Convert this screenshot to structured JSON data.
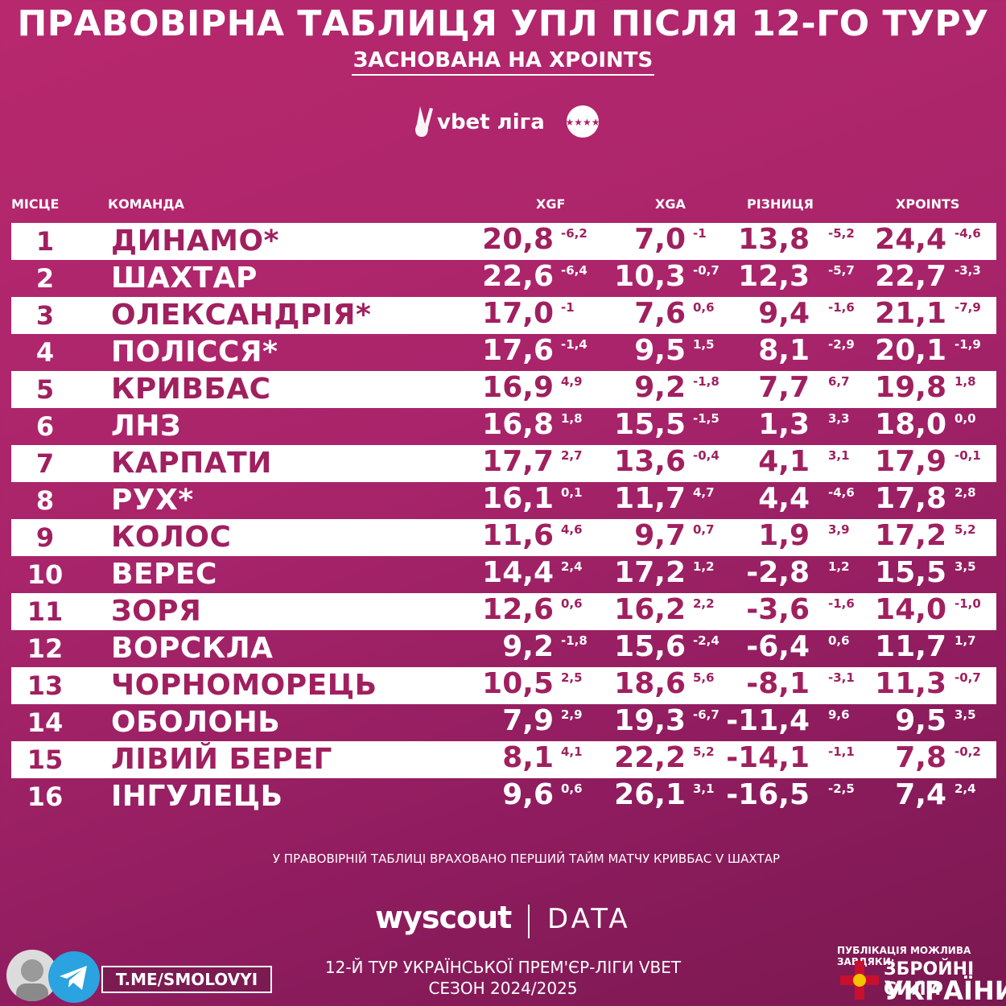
{
  "title": "ПРАВОВІРНА ТАБЛИЦЯ УПЛ ПІСЛЯ 12-ГО ТУРУ",
  "subtitle": "ЗАСНОВАНА НА XPOINTS",
  "league_logo_text": "vbet ліга",
  "headers": {
    "place": "МІСЦЕ",
    "team": "КОМАНДА",
    "xgf": "XGF",
    "xga": "XGA",
    "diff": "РІЗНИЦЯ",
    "xpoints": "XPOINTS"
  },
  "rows": [
    {
      "rank": "1",
      "team": "ДИНАМО*",
      "xgf": "20,8",
      "xgf_d": "-6,2",
      "xga": "7,0",
      "xga_d": "-1",
      "diff": "13,8",
      "diff_d": "-5,2",
      "xp": "24,4",
      "xp_d": "-4,6"
    },
    {
      "rank": "2",
      "team": "ШАХТАР",
      "xgf": "22,6",
      "xgf_d": "-6,4",
      "xga": "10,3",
      "xga_d": "-0,7",
      "diff": "12,3",
      "diff_d": "-5,7",
      "xp": "22,7",
      "xp_d": "-3,3"
    },
    {
      "rank": "3",
      "team": "ОЛЕКСАНДРІЯ*",
      "xgf": "17,0",
      "xgf_d": "-1",
      "xga": "7,6",
      "xga_d": "0,6",
      "diff": "9,4",
      "diff_d": "-1,6",
      "xp": "21,1",
      "xp_d": "-7,9"
    },
    {
      "rank": "4",
      "team": "ПОЛІССЯ*",
      "xgf": "17,6",
      "xgf_d": "-1,4",
      "xga": "9,5",
      "xga_d": "1,5",
      "diff": "8,1",
      "diff_d": "-2,9",
      "xp": "20,1",
      "xp_d": "-1,9"
    },
    {
      "rank": "5",
      "team": "КРИВБАС",
      "xgf": "16,9",
      "xgf_d": "4,9",
      "xga": "9,2",
      "xga_d": "-1,8",
      "diff": "7,7",
      "diff_d": "6,7",
      "xp": "19,8",
      "xp_d": "1,8"
    },
    {
      "rank": "6",
      "team": "ЛНЗ",
      "xgf": "16,8",
      "xgf_d": "1,8",
      "xga": "15,5",
      "xga_d": "-1,5",
      "diff": "1,3",
      "diff_d": "3,3",
      "xp": "18,0",
      "xp_d": "0,0"
    },
    {
      "rank": "7",
      "team": "КАРПАТИ",
      "xgf": "17,7",
      "xgf_d": "2,7",
      "xga": "13,6",
      "xga_d": "-0,4",
      "diff": "4,1",
      "diff_d": "3,1",
      "xp": "17,9",
      "xp_d": "-0,1"
    },
    {
      "rank": "8",
      "team": "РУХ*",
      "xgf": "16,1",
      "xgf_d": "0,1",
      "xga": "11,7",
      "xga_d": "4,7",
      "diff": "4,4",
      "diff_d": "-4,6",
      "xp": "17,8",
      "xp_d": "2,8"
    },
    {
      "rank": "9",
      "team": "КОЛОС",
      "xgf": "11,6",
      "xgf_d": "4,6",
      "xga": "9,7",
      "xga_d": "0,7",
      "diff": "1,9",
      "diff_d": "3,9",
      "xp": "17,2",
      "xp_d": "5,2"
    },
    {
      "rank": "10",
      "team": "ВЕРЕС",
      "xgf": "14,4",
      "xgf_d": "2,4",
      "xga": "17,2",
      "xga_d": "1,2",
      "diff": "-2,8",
      "diff_d": "1,2",
      "xp": "15,5",
      "xp_d": "3,5"
    },
    {
      "rank": "11",
      "team": "ЗОРЯ",
      "xgf": "12,6",
      "xgf_d": "0,6",
      "xga": "16,2",
      "xga_d": "2,2",
      "diff": "-3,6",
      "diff_d": "-1,6",
      "xp": "14,0",
      "xp_d": "-1,0"
    },
    {
      "rank": "12",
      "team": "ВОРСКЛА",
      "xgf": "9,2",
      "xgf_d": "-1,8",
      "xga": "15,6",
      "xga_d": "-2,4",
      "diff": "-6,4",
      "diff_d": "0,6",
      "xp": "11,7",
      "xp_d": "1,7"
    },
    {
      "rank": "13",
      "team": "ЧОРНОМОРЕЦЬ",
      "xgf": "10,5",
      "xgf_d": "2,5",
      "xga": "18,6",
      "xga_d": "5,6",
      "diff": "-8,1",
      "diff_d": "-3,1",
      "xp": "11,3",
      "xp_d": "-0,7"
    },
    {
      "rank": "14",
      "team": "ОБОЛОНЬ",
      "xgf": "7,9",
      "xgf_d": "2,9",
      "xga": "19,3",
      "xga_d": "-6,7",
      "diff": "-11,4",
      "diff_d": "9,6",
      "xp": "9,5",
      "xp_d": "3,5"
    },
    {
      "rank": "15",
      "team": "ЛІВИЙ БЕРЕГ",
      "xgf": "8,1",
      "xgf_d": "4,1",
      "xga": "22,2",
      "xga_d": "5,2",
      "diff": "-14,1",
      "diff_d": "-1,1",
      "xp": "7,8",
      "xp_d": "-0,2"
    },
    {
      "rank": "16",
      "team": "ІНГУЛЕЦЬ",
      "xgf": "9,6",
      "xgf_d": "0,6",
      "xga": "26,1",
      "xga_d": "3,1",
      "diff": "-16,5",
      "diff_d": "-2,5",
      "xp": "7,4",
      "xp_d": "2,4"
    }
  ],
  "note": "У ПРАВОВІРНІЙ ТАБЛИЦІ ВРАХОВАНО ПЕРШИЙ ТАЙМ МАТЧУ КРИВБАС V ШАХТАР",
  "wyscout": "wyscout",
  "wyscout_data": "DATA",
  "footer_line1": "12-Й ТУР УКРАЇНСЬКОЇ ПРЕМ'ЄР-ЛІГИ VBET",
  "footer_line2": "СЕЗОН 2024/2025",
  "telegram_link": "T.ME/SMOLOVYI",
  "zsu_header": "ПУБЛІКАЦІЯ МОЖЛИВА ЗАВДЯКИ:",
  "zsu_line1": "ЗБРОЙНІ СИЛИ",
  "zsu_line2": "УКРАЇНИ",
  "colors": {
    "accent": "#a0205f",
    "row_white": "#ffffff",
    "background": "#a8246a"
  }
}
